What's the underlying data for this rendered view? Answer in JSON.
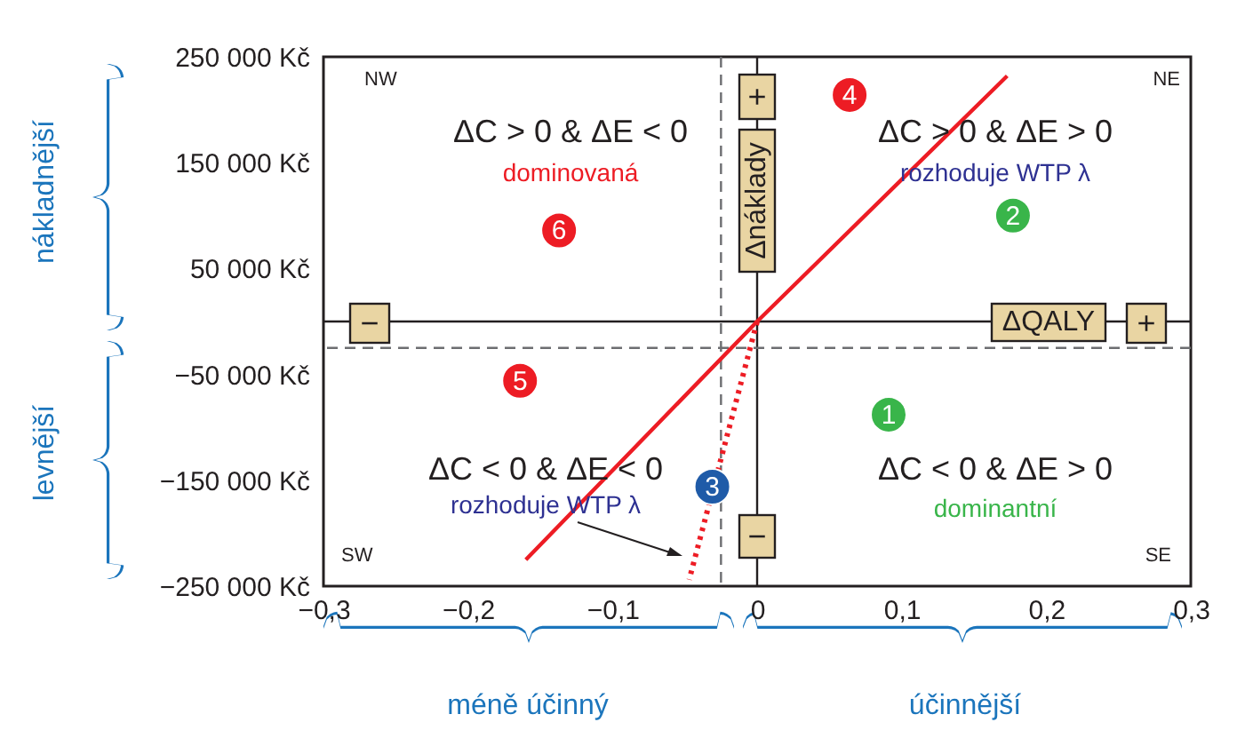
{
  "chart_data": {
    "type": "scatter",
    "xlabel": "ΔQALY",
    "ylabel": "Δnáklady",
    "xlim": [
      -0.3,
      0.3
    ],
    "ylim": [
      -250000,
      250000
    ],
    "xticks": [
      {
        "value": -0.3,
        "label": "−0,3"
      },
      {
        "value": -0.2,
        "label": "−0,2"
      },
      {
        "value": -0.1,
        "label": "−0,1"
      },
      0,
      {
        "value": 0.1,
        "label": "0,1"
      },
      {
        "value": 0.2,
        "label": "0,2"
      },
      {
        "value": 0.3,
        "label": "0,3"
      }
    ],
    "yticks": [
      {
        "value": 250000,
        "label": "250 000 Kč"
      },
      {
        "value": 150000,
        "label": "150 000 Kč"
      },
      {
        "value": 50000,
        "label": "50 000 Kč"
      },
      {
        "value": -50000,
        "label": "−50 000 Kč"
      },
      {
        "value": -150000,
        "label": "−150 000 Kč"
      },
      {
        "value": -250000,
        "label": "−250 000 Kč"
      }
    ],
    "grid": false,
    "series": [
      {
        "marker": "circle",
        "x": [
          0.091,
          0.177,
          -0.031,
          0.064,
          -0.164,
          -0.137
        ],
        "values": [
          -88000,
          100000,
          -156000,
          214000,
          -56000,
          86000
        ],
        "colors": [
          "#39b54a",
          "#39b54a",
          "#1f5ba8",
          "#ed1c24",
          "#ed1c24",
          "#ed1c24"
        ]
      },
      {
        "type": "line",
        "color": "#ed1c24",
        "x": [
          -0.16,
          0,
          0.173
        ],
        "values": [
          -225000,
          0,
          232000
        ]
      },
      {
        "type": "line",
        "color": "#ed1c24",
        "line_style": "dotted",
        "x": [
          0,
          -0.047
        ],
        "values": [
          0,
          -244000
        ]
      }
    ],
    "ref_lines": [
      {
        "axis": "x",
        "value": 0,
        "color": "#231f20",
        "line_style": "solid"
      },
      {
        "axis": "y",
        "value": 0,
        "color": "#231f20",
        "line_style": "solid"
      },
      {
        "axis": "x",
        "value": -0.025,
        "color": "#6d6e71",
        "line_style": "dashed"
      },
      {
        "axis": "y",
        "value": -25000,
        "color": "#6d6e71",
        "line_style": "dashed"
      }
    ],
    "annotations": [
      "NW",
      "NE",
      "SW",
      "SE",
      "ΔC > 0 & ΔE < 0",
      "dominovaná",
      "ΔC > 0 & ΔE > 0",
      "rozhoduje WTP λ",
      "ΔC < 0 & ΔE < 0",
      "rozhoduje WTP λ",
      "ΔC < 0 & ΔE > 0",
      "dominantní",
      "+",
      "−",
      "+",
      "−",
      "nákladnější",
      "levnější",
      "méně účinný",
      "účinnější",
      {
        "text": "1",
        "x": 0.091,
        "y": -88000
      },
      {
        "text": "2",
        "x": 0.177,
        "y": 100000
      },
      {
        "text": "3",
        "x": -0.031,
        "y": -156000
      },
      {
        "text": "4",
        "x": 0.064,
        "y": 214000
      },
      {
        "text": "5",
        "x": -0.164,
        "y": -56000
      },
      {
        "text": "6",
        "x": -0.137,
        "y": 86000
      }
    ]
  }
}
